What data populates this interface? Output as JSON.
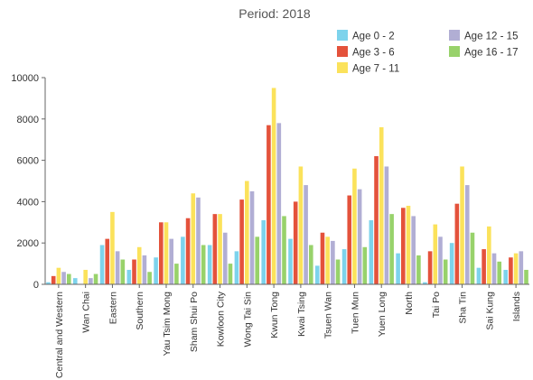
{
  "chart_data": {
    "type": "bar",
    "title": "Period: 2018",
    "xlabel": "",
    "ylabel": "",
    "ylim": [
      0,
      10000
    ],
    "yticks": [
      0,
      2000,
      4000,
      6000,
      8000,
      10000
    ],
    "grid": false,
    "legend_position": "top-right",
    "categories": [
      "Central and Western",
      "Wan Chai",
      "Eastern",
      "Southern",
      "Yau Tsim Mong",
      "Sham Shui Po",
      "Kowloon City",
      "Wong Tai Sin",
      "Kwun Tong",
      "Kwai Tsing",
      "Tsuen Wan",
      "Tuen Mun",
      "Yuen Long",
      "North",
      "Tai Po",
      "Sha Tin",
      "Sai Kung",
      "Islands"
    ],
    "series": [
      {
        "name": "Age 0 - 2",
        "color": "#7dd3ec",
        "values": [
          100,
          300,
          1900,
          700,
          1300,
          2300,
          1900,
          1600,
          3100,
          2200,
          900,
          1700,
          3100,
          1500,
          100,
          2000,
          800,
          700
        ]
      },
      {
        "name": "Age 3 - 6",
        "color": "#e4523b",
        "values": [
          400,
          0,
          2200,
          1200,
          3000,
          3200,
          3400,
          4100,
          7700,
          4000,
          2500,
          4300,
          6200,
          3700,
          1600,
          3900,
          1700,
          1300
        ]
      },
      {
        "name": "Age 7 - 11",
        "color": "#fbe25b",
        "values": [
          800,
          700,
          3500,
          1800,
          3000,
          4400,
          3400,
          5000,
          9500,
          5700,
          2300,
          5600,
          7600,
          3800,
          2900,
          5700,
          2800,
          1500
        ]
      },
      {
        "name": "Age 12 - 15",
        "color": "#b1aed4",
        "values": [
          600,
          300,
          1600,
          1400,
          2200,
          4200,
          2500,
          4500,
          7800,
          4800,
          2100,
          4600,
          5700,
          3300,
          2300,
          4800,
          1500,
          1600
        ]
      },
      {
        "name": "Age 16 - 17",
        "color": "#98d26b",
        "values": [
          500,
          500,
          1200,
          600,
          1000,
          1900,
          1000,
          2300,
          3300,
          1900,
          1200,
          1800,
          3400,
          1400,
          1200,
          2500,
          1100,
          700
        ]
      }
    ]
  }
}
